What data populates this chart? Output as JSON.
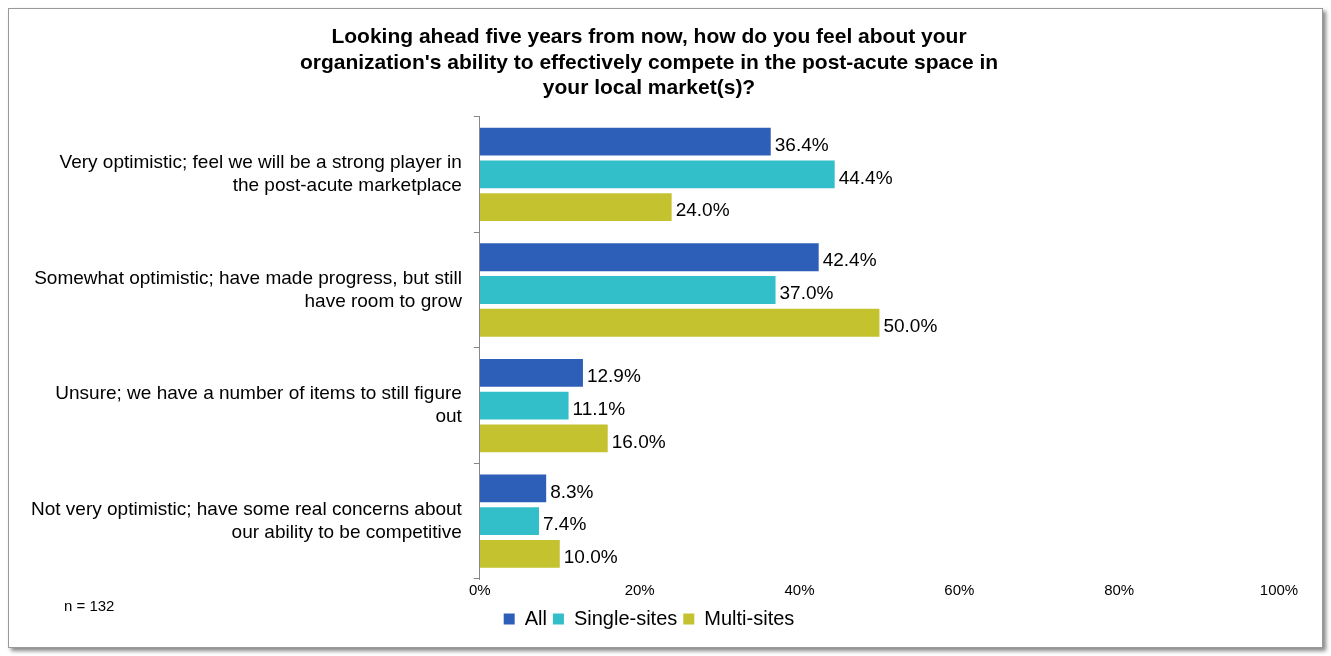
{
  "chart_data": {
    "type": "bar",
    "orientation": "horizontal",
    "title": "Looking ahead five years from now, how do you feel about your organization's ability to effectively compete in the post-acute space in your local market(s)?",
    "categories": [
      "Very optimistic; feel we will be a strong player in the post-acute marketplace",
      "Somewhat optimistic; have made progress, but still have room to grow",
      "Unsure; we have a number of items to still figure out",
      "Not very optimistic; have some real concerns about our ability to be competitive"
    ],
    "series": [
      {
        "name": "All",
        "color": "#2e5fb8",
        "values": [
          36.4,
          42.4,
          12.9,
          8.3
        ],
        "value_labels": [
          "36.4%",
          "42.4%",
          "12.9%",
          "8.3%"
        ]
      },
      {
        "name": "Single-sites",
        "color": "#33bfc9",
        "values": [
          44.4,
          37.0,
          11.1,
          7.4
        ],
        "value_labels": [
          "44.4%",
          "37.0%",
          "11.1%",
          "7.4%"
        ]
      },
      {
        "name": "Multi-sites",
        "color": "#c4c22e",
        "values": [
          24.0,
          50.0,
          16.0,
          10.0
        ],
        "value_labels": [
          "24.0%",
          "50.0%",
          "16.0%",
          "10.0%"
        ]
      }
    ],
    "xlim": [
      0,
      100
    ],
    "xticks": [
      {
        "value": 0,
        "label": "0%"
      },
      {
        "value": 20,
        "label": "20%"
      },
      {
        "value": 40,
        "label": "40%"
      },
      {
        "value": 60,
        "label": "60%"
      },
      {
        "value": 80,
        "label": "80%"
      },
      {
        "value": 100,
        "label": "100%"
      }
    ],
    "legend": "bottom",
    "grid": false,
    "annotations": [
      "n = 132"
    ]
  }
}
